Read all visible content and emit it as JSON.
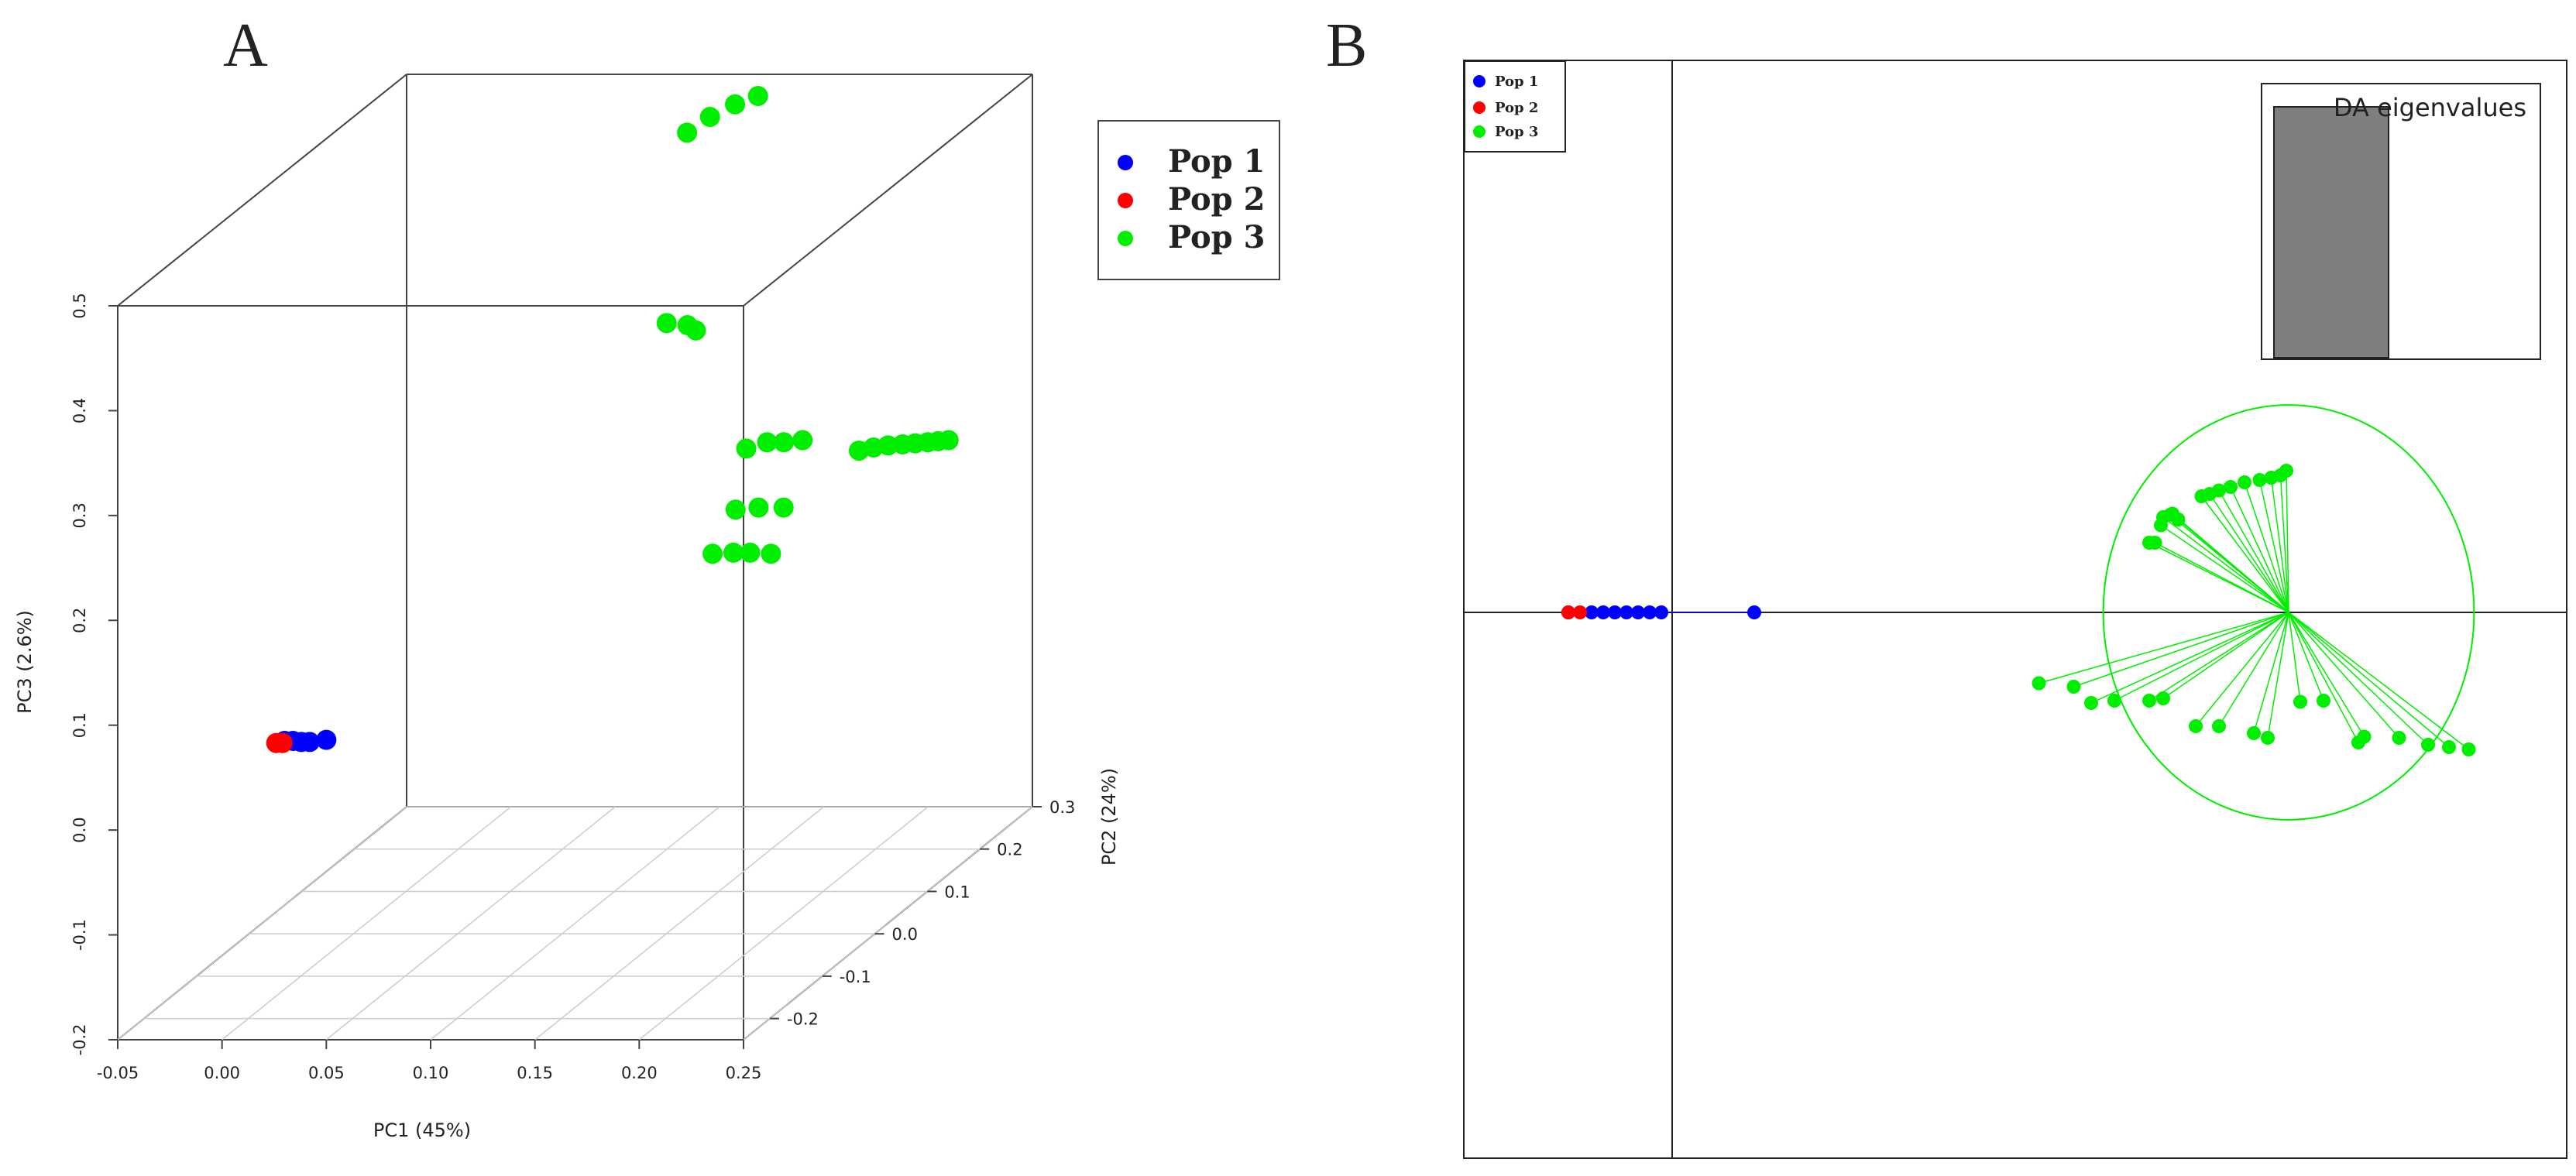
{
  "chart_data": [
    {
      "panel": "A",
      "type": "scatter",
      "projection": "3d",
      "title": "",
      "xlabel": "PC1 (45%)",
      "ylabel": "PC2 (24%)",
      "zlabel": "PC3 (2.6%)",
      "xlim": [
        -0.05,
        0.25
      ],
      "ylim": [
        -0.25,
        0.3
      ],
      "zlim": [
        -0.2,
        0.5
      ],
      "xticks": [
        "-0.05",
        "0.00",
        "0.05",
        "0.10",
        "0.15",
        "0.20",
        "0.25"
      ],
      "yticks": [
        "-0.2",
        "-0.1",
        "0.0",
        "0.1",
        "0.2",
        "0.3"
      ],
      "zticks": [
        "-0.2",
        "-0.1",
        "0.0",
        "0.1",
        "0.2",
        "0.3",
        "0.4",
        "0.5"
      ],
      "grid": "on the floor plane",
      "legend_position": "top-right",
      "series": [
        {
          "name": "Pop 1",
          "color": "#0000ff",
          "points": [
            [
              0.03,
              -0.25,
              0.085
            ],
            [
              0.034,
              -0.25,
              0.085
            ],
            [
              0.038,
              -0.25,
              0.084
            ],
            [
              0.042,
              -0.25,
              0.084
            ],
            [
              0.05,
              -0.25,
              0.086
            ]
          ]
        },
        {
          "name": "Pop 2",
          "color": "#ff0000",
          "points": [
            [
              0.026,
              -0.25,
              0.083
            ],
            [
              0.029,
              -0.25,
              0.083
            ]
          ]
        },
        {
          "name": "Pop 3",
          "color": "#00ee00",
          "points": [
            [
              0.092,
              0.27,
              0.455
            ],
            [
              0.103,
              0.27,
              0.47
            ],
            [
              0.115,
              0.27,
              0.482
            ],
            [
              0.126,
              0.27,
              0.49
            ],
            [
              0.12,
              0.12,
              0.334
            ],
            [
              0.13,
              0.12,
              0.332
            ],
            [
              0.134,
              0.12,
              0.327
            ],
            [
              0.138,
              0.2,
              0.182
            ],
            [
              0.148,
              0.2,
              0.188
            ],
            [
              0.156,
              0.2,
              0.188
            ],
            [
              0.165,
              0.2,
              0.19
            ],
            [
              0.142,
              0.12,
              0.114
            ],
            [
              0.152,
              0.12,
              0.115
            ],
            [
              0.16,
              0.12,
              0.115
            ],
            [
              0.17,
              0.12,
              0.114
            ],
            [
              0.148,
              0.14,
              0.148
            ],
            [
              0.159,
              0.14,
              0.15
            ],
            [
              0.171,
              0.14,
              0.15
            ],
            [
              0.192,
              0.2,
              0.18
            ],
            [
              0.199,
              0.2,
              0.183
            ],
            [
              0.206,
              0.2,
              0.185
            ],
            [
              0.213,
              0.2,
              0.186
            ],
            [
              0.219,
              0.2,
              0.187
            ],
            [
              0.225,
              0.2,
              0.188
            ],
            [
              0.23,
              0.2,
              0.189
            ],
            [
              0.235,
              0.2,
              0.19
            ]
          ]
        }
      ]
    },
    {
      "panel": "B",
      "type": "scatter",
      "subtype": "DAPC scatter with ellipses",
      "title": "",
      "xlabel": "",
      "ylabel": "",
      "inset_title": "DA eigenvalues",
      "inset_values": [
        1,
        0
      ],
      "legend_position": "top-left",
      "series": [
        {
          "name": "Pop 1",
          "color": "#0000ff",
          "centroid": [
            -3.8,
            0
          ],
          "points": [
            [
              -4.2,
              0
            ],
            [
              -4.0,
              0
            ],
            [
              -3.9,
              0
            ],
            [
              -3.8,
              0
            ],
            [
              -3.7,
              0
            ],
            [
              -3.6,
              0
            ],
            [
              -3.5,
              0
            ],
            [
              -3.4,
              0
            ],
            [
              -2.6,
              0
            ]
          ]
        },
        {
          "name": "Pop 2",
          "color": "#ff0000",
          "centroid": [
            -4.15,
            0
          ],
          "points": [
            [
              -4.2,
              0
            ],
            [
              -4.1,
              0
            ]
          ]
        },
        {
          "name": "Pop 3",
          "color": "#00ee00",
          "centroid": [
            2.0,
            0
          ],
          "ellipse": {
            "rx": 1.9,
            "ry": 1.9
          },
          "points": [
            [
              0.8,
              0.6
            ],
            [
              0.9,
              0.75
            ],
            [
              0.92,
              0.82
            ],
            [
              1.0,
              0.85
            ],
            [
              1.05,
              0.8
            ],
            [
              1.25,
              1.0
            ],
            [
              1.32,
              1.02
            ],
            [
              1.4,
              1.05
            ],
            [
              1.5,
              1.08
            ],
            [
              1.62,
              1.12
            ],
            [
              1.75,
              1.14
            ],
            [
              1.85,
              1.16
            ],
            [
              1.93,
              1.18
            ],
            [
              1.98,
              1.22
            ],
            [
              0.85,
              0.6
            ],
            [
              0.98,
              0.84
            ],
            [
              -0.15,
              -0.61
            ],
            [
              0.15,
              -0.64
            ],
            [
              0.3,
              -0.78
            ],
            [
              0.5,
              -0.76
            ],
            [
              0.8,
              -0.76
            ],
            [
              0.92,
              -0.74
            ],
            [
              1.2,
              -0.98
            ],
            [
              1.4,
              -0.98
            ],
            [
              1.7,
              -1.04
            ],
            [
              1.82,
              -1.08
            ],
            [
              2.1,
              -0.77
            ],
            [
              2.3,
              -0.76
            ],
            [
              2.6,
              -1.12
            ],
            [
              2.65,
              -1.07
            ],
            [
              2.95,
              -1.08
            ],
            [
              3.2,
              -1.14
            ],
            [
              3.38,
              -1.16
            ],
            [
              3.55,
              -1.18
            ]
          ]
        }
      ]
    }
  ],
  "labels": {
    "panel_a": "A",
    "panel_b": "B",
    "legend_a": [
      "Pop 1",
      "Pop 2",
      "Pop 3"
    ],
    "legend_b": [
      "Pop 1",
      "Pop 2",
      "Pop 3"
    ]
  }
}
